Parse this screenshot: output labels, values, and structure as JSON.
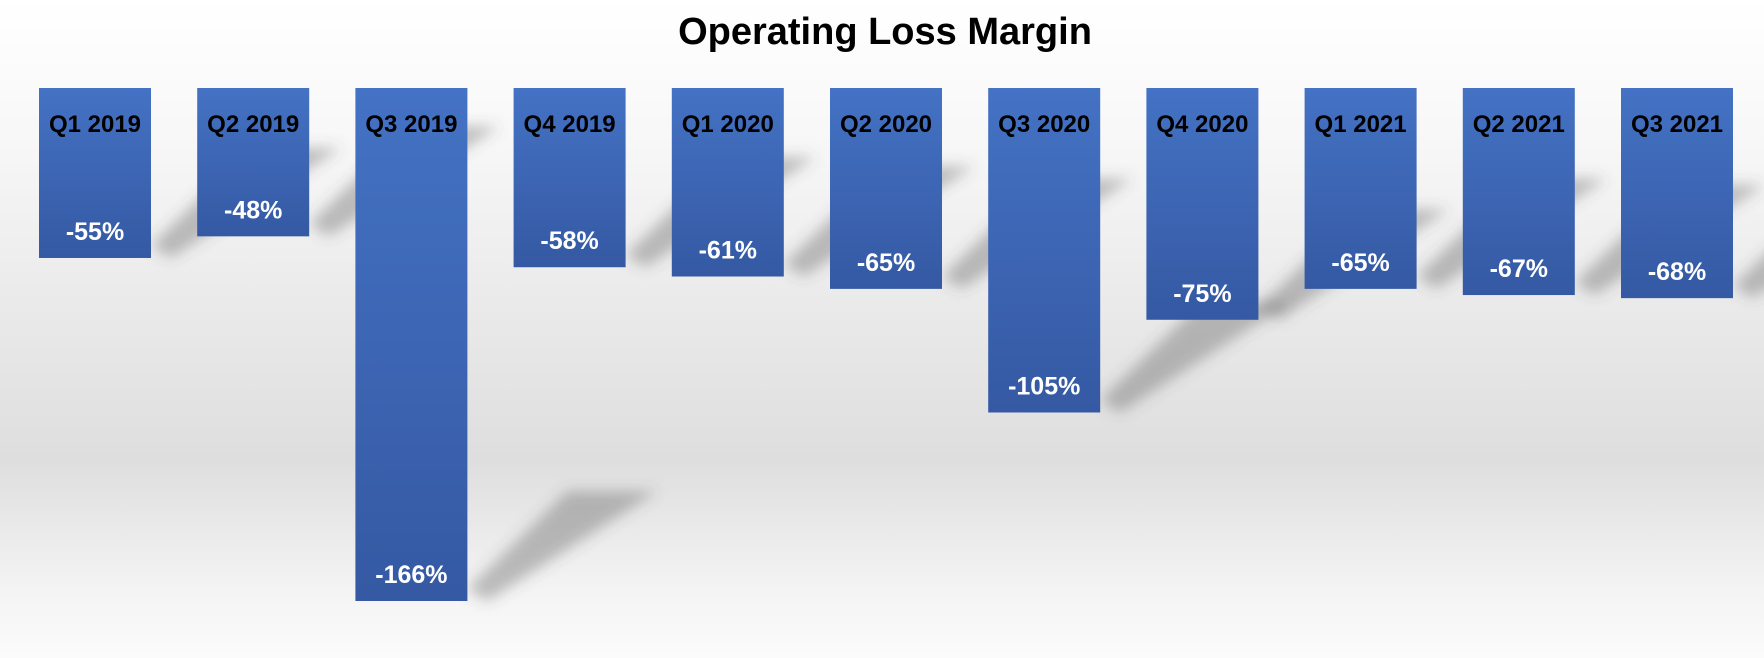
{
  "chart_data": {
    "type": "bar",
    "title": "Operating Loss Margin",
    "xlabel": "",
    "ylabel": "",
    "categories": [
      "Q1 2019",
      "Q2 2019",
      "Q3 2019",
      "Q4 2019",
      "Q1 2020",
      "Q2 2020",
      "Q3 2020",
      "Q4 2020",
      "Q1 2021",
      "Q2 2021",
      "Q3 2021"
    ],
    "values": [
      -55,
      -48,
      -166,
      -58,
      -61,
      -65,
      -105,
      -75,
      -65,
      -67,
      -68
    ],
    "value_labels": [
      "-55%",
      "-48%",
      "-166%",
      "-58%",
      "-61%",
      "-65%",
      "-105%",
      "-75%",
      "-65%",
      "-67%",
      "-68%"
    ],
    "ylim": [
      -166,
      0
    ],
    "grid": false,
    "legend": "none",
    "category_label_position": "inside-top",
    "bar_color": "#4472C4"
  }
}
